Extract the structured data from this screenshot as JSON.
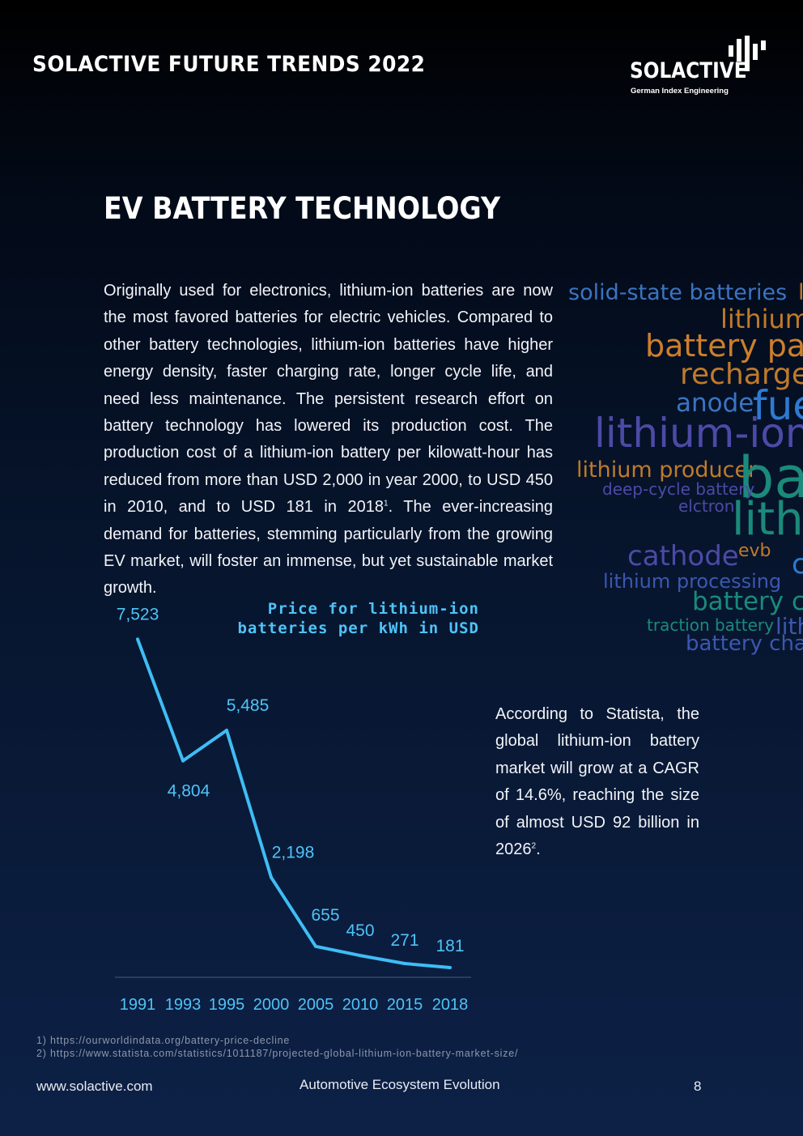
{
  "header": {
    "title": "SOLACTIVE FUTURE TRENDS 2022",
    "logo": {
      "word": "SOLACTIVE",
      "tagline": "German Index Engineering",
      "icon": "bar-mark-icon"
    }
  },
  "page_title": "EV BATTERY TECHNOLOGY",
  "intro": {
    "text": "Originally used for electronics, lithium-ion batteries are now the most favored batteries for electric vehicles. Compared to other battery technologies, lithium-ion batteries have higher energy density, faster charging rate, longer cycle life, and need less maintenance. The persistent research effort on battery technology has lowered its production cost. The production cost of a lithium-ion battery per kilowatt-hour has reduced from more than USD 2,000 in year 2000, to USD 450 in 2010, and to USD 181 in 2018",
    "footnote_ref": "1",
    "text_after": ".  The ever-increasing demand for batteries, stemming particularly from the growing EV market, will foster an immense, but yet sustainable market growth."
  },
  "side_note": {
    "text": "According to Statista, the global lithium-ion battery market will grow at a CAGR of 14.6%, reaching the size of almost USD 92 billion in 2026",
    "footnote_ref": "2",
    "text_after": "."
  },
  "chart_data": {
    "type": "line",
    "title": "Price for lithium-ion batteries per kWh in USD",
    "title_lines": [
      "Price for lithium-ion",
      "batteries per kWh in USD"
    ],
    "categories": [
      "1991",
      "1993",
      "1995",
      "2000",
      "2005",
      "2010",
      "2015",
      "2018"
    ],
    "values": [
      7523,
      4804,
      5485,
      2198,
      655,
      450,
      271,
      181
    ],
    "value_labels": [
      "7,523",
      "4,804",
      "5,485",
      "2,198",
      "655",
      "450",
      "271",
      "181"
    ],
    "ylim": [
      0,
      8000
    ],
    "grid": false,
    "xlabel": "",
    "ylabel": "",
    "line_color": "#3fbdf5"
  },
  "wordcloud": [
    {
      "text": "solid-state batteries",
      "color": "#3b74c2"
    },
    {
      "text": "l",
      "color": "#c07a2a"
    },
    {
      "text": "lithium",
      "color": "#c07a2a"
    },
    {
      "text": "battery pac",
      "color": "#cd7f2b"
    },
    {
      "text": "recharge",
      "color": "#c07a2a"
    },
    {
      "text": "anode",
      "color": "#3b74c2"
    },
    {
      "text": "fue",
      "color": "#2e7ad1"
    },
    {
      "text": "lithium-ion",
      "color": "#4c4aa6"
    },
    {
      "text": "lithium producer",
      "color": "#c07a2a"
    },
    {
      "text": "ba",
      "color": "#1b8a7a"
    },
    {
      "text": "deep-cycle battery",
      "color": "#4c4aa6"
    },
    {
      "text": "elctron",
      "color": "#4c4aa6"
    },
    {
      "text": "lith",
      "color": "#1b8a7a"
    },
    {
      "text": "cathode",
      "color": "#4c4aa6"
    },
    {
      "text": "evb",
      "color": "#c07a2a"
    },
    {
      "text": "c",
      "color": "#2e7ad1"
    },
    {
      "text": "lithium processing",
      "color": "#3b57b0"
    },
    {
      "text": "battery ce",
      "color": "#1b8a7a"
    },
    {
      "text": "traction battery",
      "color": "#1b8a7a"
    },
    {
      "text": "lith",
      "color": "#3b57b0"
    },
    {
      "text": "battery charg",
      "color": "#3b57b0"
    }
  ],
  "footnotes": [
    "1) https://ourworldindata.org/battery-price-decline",
    "2) https://www.statista.com/statistics/1011187/projected-global-lithium-ion-battery-market-size/"
  ],
  "footer": {
    "url": "www.solactive.com",
    "section": "Automotive Ecosystem Evolution",
    "page_number": "8"
  }
}
